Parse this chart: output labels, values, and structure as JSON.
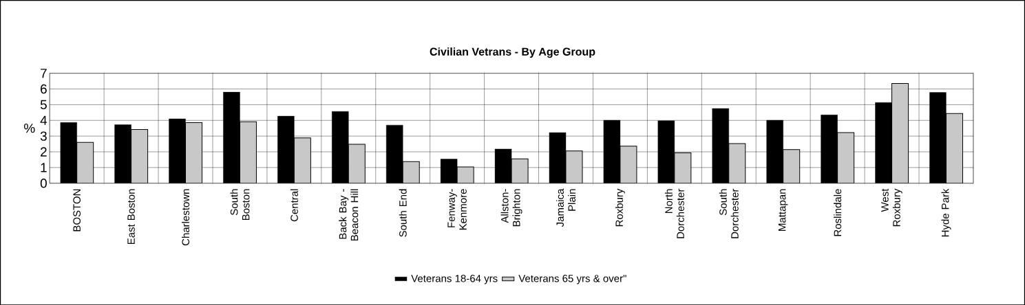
{
  "chart_data": {
    "type": "bar",
    "title": "Civilian Vetrans - By Age Group",
    "ylabel": "%",
    "categories": [
      "BOSTON",
      "East Boston",
      "Charlestown",
      "South Boston",
      "Central",
      "Back Bay - Beacon Hill",
      "South End",
      "Fenway-Kenmore",
      "Allston-Brighton",
      "Jamaica Plain",
      "Roxbury",
      "North Dorchester",
      "South Dorchester",
      "Mattapan",
      "Roslindale",
      "West Roxbury",
      "Hyde Park"
    ],
    "series": [
      {
        "name": "Veterans 18-64 yrs",
        "color": "#000000",
        "values": [
          3.87,
          3.73,
          4.1,
          5.81,
          4.27,
          4.57,
          3.7,
          1.54,
          2.18,
          3.22,
          4.01,
          3.98,
          4.76,
          4.01,
          4.35,
          5.14,
          5.78
        ]
      },
      {
        "name": "Veterans 65 yrs & over\"",
        "color": "#c8c8c8",
        "values": [
          2.6,
          3.42,
          3.86,
          3.91,
          2.89,
          2.48,
          1.38,
          1.04,
          1.55,
          2.06,
          2.36,
          1.94,
          2.53,
          2.14,
          3.22,
          6.35,
          4.44
        ]
      }
    ],
    "ylim": [
      0,
      7
    ],
    "yticks": [
      0,
      1,
      2,
      3,
      4,
      5,
      6,
      7
    ],
    "grid": true,
    "legend": "bottom"
  }
}
